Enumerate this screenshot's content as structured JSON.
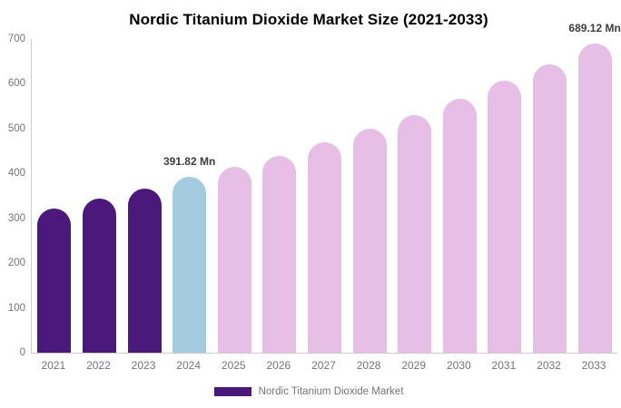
{
  "title": "Nordic Titanium Dioxide Market Size (2021-2033)",
  "legend": {
    "label": "Nordic Titanium Dioxide Market",
    "swatch_color": "#4B197B"
  },
  "colors": {
    "historical_bar": "#4B197B",
    "base_year_bar": "#A5CBDF",
    "forecast_bar": "#E6BEE6",
    "axis_line": "#CCCCCC",
    "axis_tick_label": "#757575",
    "data_label": "#3D3D3D",
    "title": "#000000",
    "background": "#FFFFFF"
  },
  "chart_data": {
    "type": "bar",
    "title": "Nordic Titanium Dioxide Market Size (2021-2033)",
    "series_name": "Nordic Titanium Dioxide Market",
    "unit": "Mn",
    "categories": [
      "2021",
      "2022",
      "2023",
      "2024",
      "2025",
      "2026",
      "2027",
      "2028",
      "2029",
      "2030",
      "2031",
      "2032",
      "2033"
    ],
    "values": [
      322,
      344,
      366,
      391.82,
      415,
      440,
      470,
      500,
      531,
      566,
      606,
      644,
      689.12
    ],
    "bar_roles": [
      "historical",
      "historical",
      "historical",
      "base_year",
      "forecast",
      "forecast",
      "forecast",
      "forecast",
      "forecast",
      "forecast",
      "forecast",
      "forecast",
      "forecast"
    ],
    "data_labels": [
      {
        "category": "2024",
        "text": "391.82 Mn"
      },
      {
        "category": "2033",
        "text": "689.12 Mn"
      }
    ],
    "xlabel": "",
    "ylabel": "",
    "ylim": [
      0,
      700
    ],
    "yticks": [
      0,
      100,
      200,
      300,
      400,
      500,
      600,
      700
    ],
    "grid": false,
    "legend_position": "bottom"
  }
}
